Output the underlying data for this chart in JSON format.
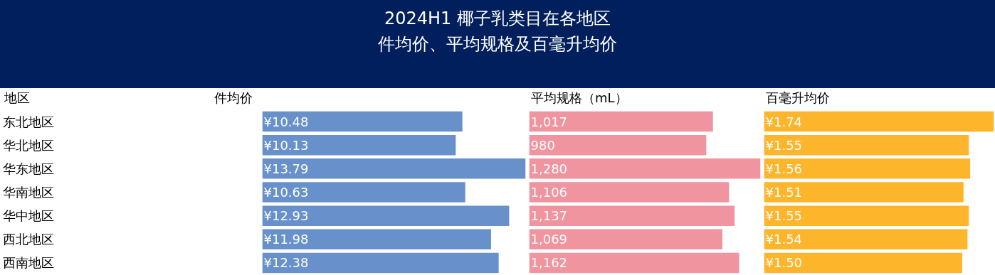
{
  "chart_data": [
    {
      "type": "bar",
      "orientation": "horizontal",
      "title": "2024H1 椰子乳类目在各地区",
      "subtitle": "件均价、平均规格及百毫升均价",
      "ylabel": "地区",
      "xlabel": "件均价",
      "categories": [
        "东北地区",
        "华北地区",
        "华东地区",
        "华南地区",
        "华中地区",
        "西北地区",
        "西南地区"
      ],
      "values": [
        10.48,
        10.13,
        13.79,
        10.63,
        12.93,
        11.98,
        12.38
      ],
      "value_labels": [
        "¥10.48",
        "¥10.13",
        "¥13.79",
        "¥10.63",
        "¥12.93",
        "¥11.98",
        "¥12.38"
      ],
      "color": "#6891cb"
    },
    {
      "type": "bar",
      "orientation": "horizontal",
      "xlabel": "平均规格（mL）",
      "values": [
        1017,
        980,
        1280,
        1106,
        1137,
        1069,
        1162
      ],
      "value_labels": [
        "1,017",
        "980",
        "1,280",
        "1,106",
        "1,137",
        "1,069",
        "1,162"
      ],
      "color": "#f0949f",
      "tick_labels": false
    },
    {
      "type": "bar",
      "orientation": "horizontal",
      "xlabel": "百毫升均价",
      "values": [
        1.74,
        1.55,
        1.56,
        1.51,
        1.55,
        1.54,
        1.5
      ],
      "value_labels": [
        "¥1.74",
        "¥1.55",
        "¥1.56",
        "¥1.51",
        "¥1.55",
        "¥1.54",
        "¥1.50"
      ],
      "color": "#fdb52b",
      "tick_labels": false
    }
  ]
}
